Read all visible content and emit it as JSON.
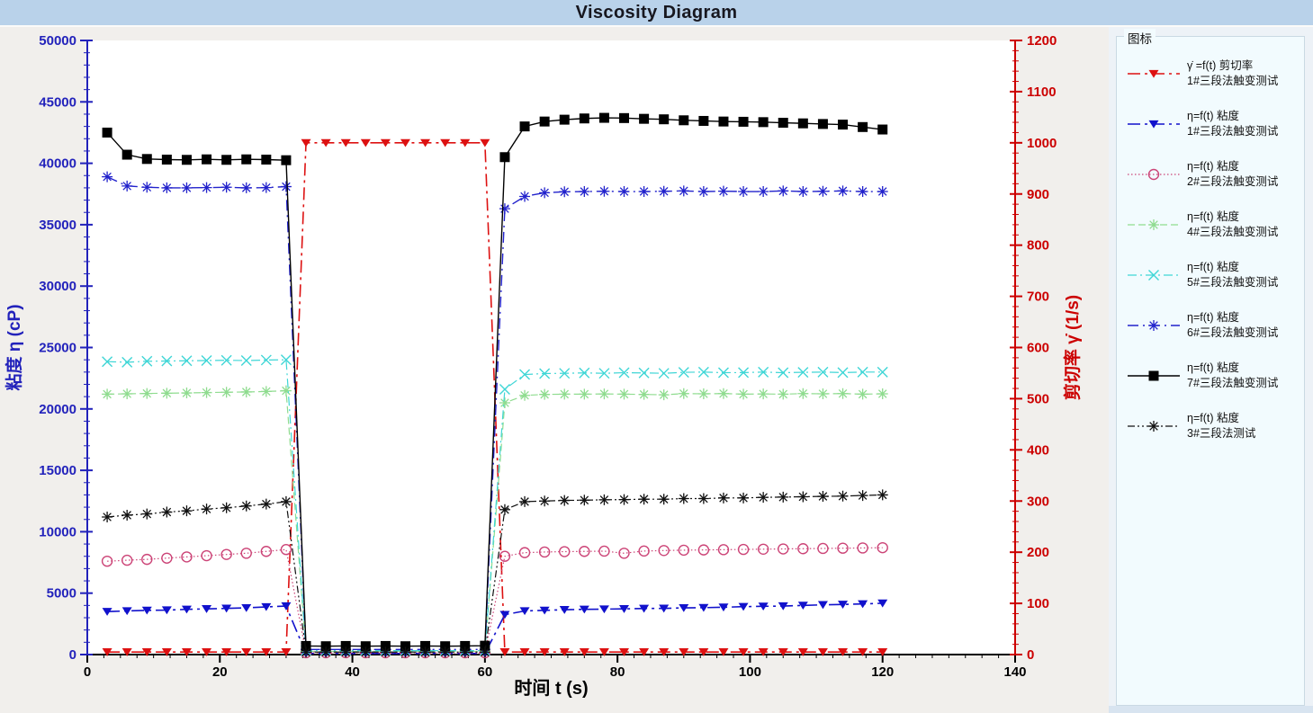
{
  "window": {
    "title": "Viscosity Diagram"
  },
  "legend": {
    "title": "图标",
    "items": [
      {
        "line1": "γ̇ =f(t) 剪切率",
        "line2": "1#三段法触变测试"
      },
      {
        "line1": "η=f(t) 粘度",
        "line2": "1#三段法触变测试"
      },
      {
        "line1": "η=f(t) 粘度",
        "line2": "2#三段法触变测试"
      },
      {
        "line1": "η=f(t) 粘度",
        "line2": "4#三段法触变测试"
      },
      {
        "line1": "η=f(t) 粘度",
        "line2": "5#三段法触变测试"
      },
      {
        "line1": "η=f(t) 粘度",
        "line2": "6#三段法触变测试"
      },
      {
        "line1": "η=f(t) 粘度",
        "line2": "7#三段法触变测试"
      },
      {
        "line1": "η=f(t) 粘度",
        "line2": "3#三段法测试"
      }
    ]
  },
  "chart_data": {
    "type": "line",
    "title": "Viscosity Diagram",
    "xlabel": "时间 t (s)",
    "ylabel_left": "粘度 η (cP)",
    "ylabel_right": "剪切率 γ̇ (1/s)",
    "x_range": [
      0,
      140
    ],
    "x_major": 20,
    "x_minor": 2.5,
    "y_left_range": [
      0,
      50000
    ],
    "y_left_major": 5000,
    "y_left_minor": 1000,
    "y_right_range": [
      0,
      1200
    ],
    "y_right_major": 100,
    "y_right_minor": 20,
    "grid": false,
    "legend_position": "right",
    "axis_colors": {
      "left": "#2222bb",
      "right": "#cc0000",
      "x": "#000000"
    },
    "x": [
      3,
      6,
      9,
      12,
      15,
      18,
      21,
      24,
      27,
      30,
      33,
      36,
      39,
      42,
      45,
      48,
      51,
      54,
      57,
      60,
      63,
      66,
      69,
      72,
      75,
      78,
      81,
      84,
      87,
      90,
      93,
      96,
      99,
      102,
      105,
      108,
      111,
      114,
      117,
      120
    ],
    "series": [
      {
        "id": "shear-rate-1",
        "name": "γ̇=f(t) 剪切率 1#三段法触变测试",
        "axis": "right",
        "color": "#dd1111",
        "dash": "14,5,3,5",
        "marker": "triangle-down",
        "width": 1.6,
        "values": [
          5,
          5,
          5,
          5,
          5,
          5,
          5,
          5,
          5,
          5,
          1000,
          1000,
          1000,
          1000,
          1000,
          1000,
          1000,
          1000,
          1000,
          1000,
          5,
          5,
          5,
          5,
          5,
          5,
          5,
          5,
          5,
          5,
          5,
          5,
          5,
          5,
          5,
          5,
          5,
          5,
          5,
          5
        ]
      },
      {
        "id": "viscosity-1",
        "name": "η=f(t) 粘度 1#三段法触变测试",
        "axis": "left",
        "color": "#1111cc",
        "dash": "14,5,3,5",
        "marker": "triangle-down",
        "width": 1.6,
        "values": [
          3500,
          3550,
          3600,
          3620,
          3680,
          3720,
          3760,
          3800,
          3880,
          3950,
          90,
          90,
          90,
          90,
          90,
          90,
          90,
          90,
          90,
          90,
          3250,
          3550,
          3600,
          3650,
          3680,
          3700,
          3720,
          3750,
          3760,
          3800,
          3820,
          3850,
          3900,
          3930,
          3950,
          4000,
          4050,
          4080,
          4120,
          4180
        ]
      },
      {
        "id": "viscosity-2",
        "name": "η=f(t) 粘度 2#三段法触变测试",
        "axis": "left",
        "color": "#cc4477",
        "dash": "1.5,2.5",
        "marker": "circle",
        "width": 1.2,
        "values": [
          7600,
          7680,
          7750,
          7850,
          7950,
          8050,
          8150,
          8250,
          8400,
          8550,
          150,
          150,
          150,
          150,
          150,
          150,
          150,
          150,
          150,
          150,
          8000,
          8300,
          8350,
          8380,
          8400,
          8420,
          8250,
          8430,
          8470,
          8500,
          8520,
          8540,
          8560,
          8580,
          8600,
          8620,
          8640,
          8660,
          8680,
          8700
        ]
      },
      {
        "id": "viscosity-4",
        "name": "η=f(t) 粘度 4#三段法触变测试",
        "axis": "left",
        "color": "#8fdc8f",
        "dash": "8,4",
        "marker": "asterisk",
        "width": 1.2,
        "values": [
          21200,
          21230,
          21260,
          21280,
          21300,
          21330,
          21360,
          21380,
          21420,
          21480,
          260,
          260,
          260,
          260,
          260,
          260,
          260,
          260,
          260,
          260,
          20500,
          21100,
          21180,
          21200,
          21200,
          21220,
          21200,
          21180,
          21150,
          21250,
          21230,
          21250,
          21200,
          21220,
          21200,
          21250,
          21230,
          21250,
          21200,
          21230
        ]
      },
      {
        "id": "viscosity-5",
        "name": "η=f(t) 粘度 5#三段法触变测试",
        "axis": "left",
        "color": "#3fd6d6",
        "dash": "10,4,2,4",
        "marker": "x",
        "width": 1.2,
        "values": [
          23850,
          23800,
          23880,
          23900,
          23920,
          23940,
          23960,
          23940,
          23980,
          24000,
          320,
          320,
          320,
          320,
          320,
          320,
          320,
          320,
          320,
          320,
          21600,
          22800,
          22880,
          22900,
          22930,
          22900,
          22950,
          22930,
          22900,
          22980,
          23000,
          22950,
          22960,
          23000,
          22950,
          22980,
          23000,
          22960,
          23000,
          23000
        ]
      },
      {
        "id": "viscosity-6",
        "name": "η=f(t) 粘度 6#三段法触变测试",
        "axis": "left",
        "color": "#2222cc",
        "dash": "12,5,2,5",
        "marker": "asterisk",
        "width": 1.4,
        "values": [
          38900,
          38150,
          38050,
          38000,
          38000,
          38020,
          38050,
          38000,
          38020,
          38100,
          420,
          420,
          420,
          420,
          420,
          420,
          420,
          420,
          420,
          420,
          36300,
          37300,
          37600,
          37680,
          37700,
          37720,
          37700,
          37700,
          37720,
          37750,
          37700,
          37730,
          37700,
          37700,
          37750,
          37700,
          37720,
          37750,
          37700,
          37700
        ]
      },
      {
        "id": "viscosity-7",
        "name": "η=f(t) 粘度 7#三段法触变测试",
        "axis": "left",
        "color": "#000000",
        "dash": "",
        "marker": "square",
        "width": 1.4,
        "values": [
          42500,
          40700,
          40350,
          40300,
          40280,
          40320,
          40280,
          40320,
          40300,
          40250,
          700,
          680,
          700,
          680,
          700,
          680,
          700,
          680,
          700,
          720,
          40500,
          43000,
          43400,
          43550,
          43650,
          43700,
          43680,
          43620,
          43580,
          43500,
          43450,
          43400,
          43380,
          43350,
          43300,
          43250,
          43200,
          43150,
          42950,
          42750
        ]
      },
      {
        "id": "viscosity-3",
        "name": "η=f(t) 粘度 3#三段法测试",
        "axis": "left",
        "color": "#111111",
        "dash": "8,3,2,3,2,3",
        "marker": "asterisk",
        "width": 1.2,
        "values": [
          11200,
          11350,
          11450,
          11600,
          11700,
          11850,
          11950,
          12100,
          12250,
          12450,
          200,
          200,
          200,
          200,
          200,
          200,
          200,
          200,
          200,
          200,
          11800,
          12450,
          12500,
          12550,
          12570,
          12600,
          12620,
          12650,
          12650,
          12700,
          12700,
          12750,
          12750,
          12800,
          12820,
          12850,
          12880,
          12900,
          12950,
          13000
        ]
      }
    ]
  },
  "colors": {
    "header_bg": "#b9d2ea",
    "chart_bg": "#f1efec",
    "plot_bg": "#ffffff",
    "panel_bg": "#edf2f7",
    "legendbox_bg": "#f2fbfe"
  }
}
